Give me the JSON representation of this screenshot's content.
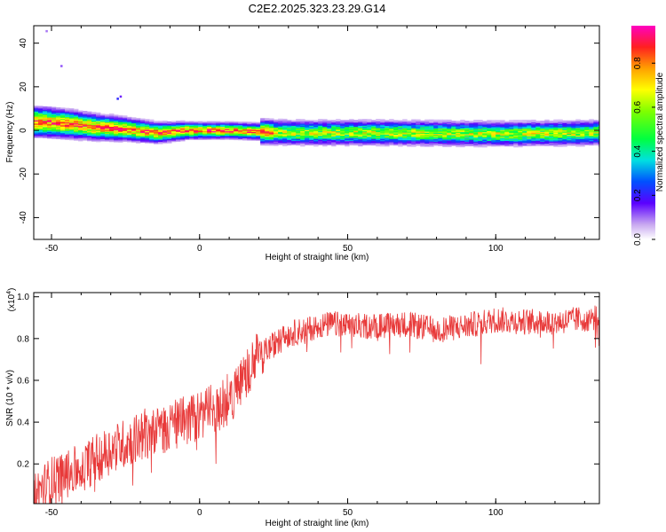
{
  "title": "C2E2.2025.323.23.29.G14",
  "colors": {
    "line": "#e83a3a",
    "axis": "#000000",
    "background": "#ffffff"
  },
  "chart_data": [
    {
      "type": "heatmap",
      "xlabel": "Height of straight line (km)",
      "ylabel": "Frequency (Hz)",
      "xlim": [
        -56,
        135
      ],
      "ylim": [
        -50,
        48
      ],
      "xticks": [
        -50,
        0,
        50,
        100
      ],
      "yticks": [
        -40,
        -20,
        0,
        20,
        40
      ],
      "colorbar": {
        "label": "Normalized spectral amplitude",
        "range": [
          0,
          0.97
        ],
        "ticks": [
          0,
          0.2,
          0.4,
          0.6,
          0.8
        ]
      },
      "ridge": [
        {
          "x": -55,
          "f": 4
        },
        {
          "x": -45,
          "f": 3
        },
        {
          "x": -35,
          "f": 1.5
        },
        {
          "x": -25,
          "f": 0.5
        },
        {
          "x": -15,
          "f": -1
        },
        {
          "x": -5,
          "f": 0
        },
        {
          "x": 10,
          "f": 0
        },
        {
          "x": 30,
          "f": -1
        },
        {
          "x": 60,
          "f": -1
        },
        {
          "x": 100,
          "f": -1.5
        },
        {
          "x": 134,
          "f": -1
        }
      ]
    },
    {
      "type": "line",
      "xlabel": "Height of straight line (km)",
      "ylabel": "SNR (10 * v/v)",
      "yscale_label": "(x10",
      "yscale_exp": "4",
      "yscale_close": ")",
      "xlim": [
        -56,
        135
      ],
      "ylim": [
        0.01,
        1.02
      ],
      "xticks": [
        -50,
        0,
        50,
        100
      ],
      "yticks": [
        0.2,
        0.4,
        0.6,
        0.8,
        1.0
      ],
      "ytick_labels": [
        "0.2",
        "0.4",
        "0.6",
        "0.8",
        "1.0"
      ],
      "series": [
        {
          "trend_x": [
            -56,
            -50,
            -40,
            -30,
            -20,
            -10,
            0,
            10,
            15,
            20,
            30,
            40,
            45,
            50,
            60,
            70,
            80,
            90,
            100,
            110,
            120,
            134
          ],
          "trend_y": [
            0.05,
            0.12,
            0.18,
            0.27,
            0.33,
            0.38,
            0.43,
            0.5,
            0.62,
            0.72,
            0.82,
            0.86,
            0.87,
            0.86,
            0.86,
            0.87,
            0.84,
            0.86,
            0.89,
            0.88,
            0.88,
            0.9
          ],
          "noise": 0.07
        }
      ]
    }
  ]
}
